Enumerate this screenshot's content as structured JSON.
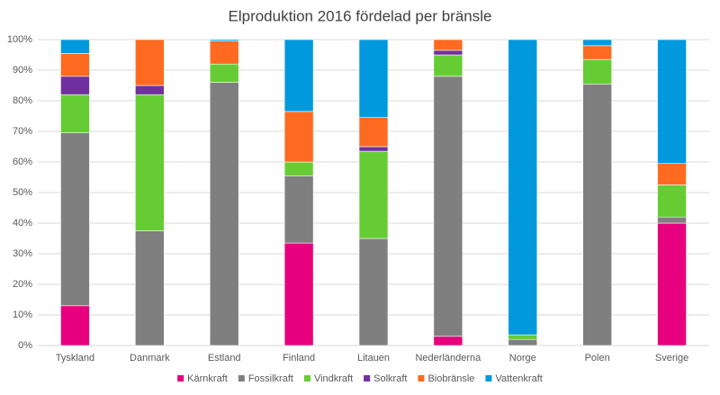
{
  "chart_data": {
    "type": "stacked-bar",
    "title": "Elproduktion 2016 fördelad per bränsle",
    "categories": [
      "Tyskland",
      "Danmark",
      "Estland",
      "Finland",
      "Litauen",
      "Nederländerna",
      "Norge",
      "Polen",
      "Sverige"
    ],
    "series": [
      {
        "name": "Kärnkraft",
        "color": "#e6007e",
        "values": [
          13,
          0,
          0,
          33.5,
          0,
          3,
          0,
          0,
          40
        ]
      },
      {
        "name": "Fossilkraft",
        "color": "#7f7f7f",
        "values": [
          56.5,
          37.5,
          86,
          22,
          35,
          85,
          2,
          85.5,
          2
        ]
      },
      {
        "name": "Vindkraft",
        "color": "#66cc33",
        "values": [
          12.5,
          44.5,
          6,
          4.5,
          28.5,
          7,
          1.5,
          8,
          10.5
        ]
      },
      {
        "name": "Solkraft",
        "color": "#7030a0",
        "values": [
          6,
          3,
          0,
          0,
          1.5,
          1.5,
          0,
          0,
          0
        ]
      },
      {
        "name": "Biobränsle",
        "color": "#ff6a21",
        "values": [
          7.5,
          15,
          7.5,
          16.5,
          9.5,
          3.5,
          0,
          4.5,
          7
        ]
      },
      {
        "name": "Vattenkraft",
        "color": "#0099dd",
        "values": [
          4.5,
          0,
          0.5,
          23.5,
          25.5,
          0,
          96.5,
          2,
          40.5
        ]
      }
    ],
    "ylim": [
      0,
      100
    ],
    "yticks": [
      {
        "value": 0,
        "label": "0%"
      },
      {
        "value": 10,
        "label": "10%"
      },
      {
        "value": 20,
        "label": "20%"
      },
      {
        "value": 30,
        "label": "30%"
      },
      {
        "value": 40,
        "label": "40%"
      },
      {
        "value": 50,
        "label": "50%"
      },
      {
        "value": 60,
        "label": "60%"
      },
      {
        "value": 70,
        "label": "70%"
      },
      {
        "value": 80,
        "label": "80%"
      },
      {
        "value": 90,
        "label": "90%"
      },
      {
        "value": 100,
        "label": "100%"
      }
    ],
    "grid": true,
    "legend": "bottom"
  }
}
